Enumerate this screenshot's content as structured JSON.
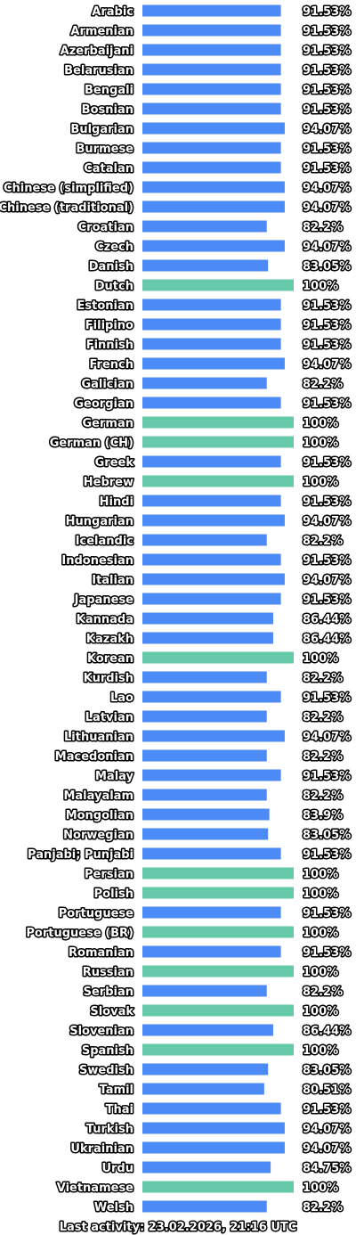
{
  "chart_data": {
    "type": "bar",
    "orientation": "horizontal",
    "xlim": [
      0,
      100
    ],
    "colors": {
      "complete": "#66c9a9",
      "partial": "#4c8bf5"
    },
    "categories": [
      "Arabic",
      "Armenian",
      "Azerbaijani",
      "Belarusian",
      "Bengali",
      "Bosnian",
      "Bulgarian",
      "Burmese",
      "Catalan",
      "Chinese (simplified)",
      "Chinese (traditional)",
      "Croatian",
      "Czech",
      "Danish",
      "Dutch",
      "Estonian",
      "Filipino",
      "Finnish",
      "French",
      "Galician",
      "Georgian",
      "German",
      "German (CH)",
      "Greek",
      "Hebrew",
      "Hindi",
      "Hungarian",
      "Icelandic",
      "Indonesian",
      "Italian",
      "Japanese",
      "Kannada",
      "Kazakh",
      "Korean",
      "Kurdish",
      "Lao",
      "Latvian",
      "Lithuanian",
      "Macedonian",
      "Malay",
      "Malayalam",
      "Mongolian",
      "Norwegian",
      "Panjabi; Punjabi",
      "Persian",
      "Polish",
      "Portuguese",
      "Portuguese (BR)",
      "Romanian",
      "Russian",
      "Serbian",
      "Slovak",
      "Slovenian",
      "Spanish",
      "Swedish",
      "Tamil",
      "Thai",
      "Turkish",
      "Ukrainian",
      "Urdu",
      "Vietnamese",
      "Welsh"
    ],
    "values": [
      91.53,
      91.53,
      91.53,
      91.53,
      91.53,
      91.53,
      94.07,
      91.53,
      91.53,
      94.07,
      94.07,
      82.2,
      94.07,
      83.05,
      100,
      91.53,
      91.53,
      91.53,
      94.07,
      82.2,
      91.53,
      100,
      100,
      91.53,
      100,
      91.53,
      94.07,
      82.2,
      91.53,
      94.07,
      91.53,
      86.44,
      86.44,
      100,
      82.2,
      91.53,
      82.2,
      94.07,
      82.2,
      91.53,
      82.2,
      83.9,
      83.05,
      91.53,
      100,
      100,
      91.53,
      100,
      91.53,
      100,
      82.2,
      100,
      86.44,
      100,
      83.05,
      80.51,
      91.53,
      94.07,
      94.07,
      84.75,
      100,
      82.2
    ],
    "value_labels": [
      "91.53%",
      "91.53%",
      "91.53%",
      "91.53%",
      "91.53%",
      "91.53%",
      "94.07%",
      "91.53%",
      "91.53%",
      "94.07%",
      "94.07%",
      "82.2%",
      "94.07%",
      "83.05%",
      "100%",
      "91.53%",
      "91.53%",
      "91.53%",
      "94.07%",
      "82.2%",
      "91.53%",
      "100%",
      "100%",
      "91.53%",
      "100%",
      "91.53%",
      "94.07%",
      "82.2%",
      "91.53%",
      "94.07%",
      "91.53%",
      "86.44%",
      "86.44%",
      "100%",
      "82.2%",
      "91.53%",
      "82.2%",
      "94.07%",
      "82.2%",
      "91.53%",
      "82.2%",
      "83.9%",
      "83.05%",
      "91.53%",
      "100%",
      "100%",
      "91.53%",
      "100%",
      "91.53%",
      "100%",
      "82.2%",
      "100%",
      "86.44%",
      "100%",
      "83.05%",
      "80.51%",
      "91.53%",
      "94.07%",
      "94.07%",
      "84.75%",
      "100%",
      "82.2%"
    ]
  },
  "footer": "Last activity: 23.02.2026, 21:16 UTC"
}
